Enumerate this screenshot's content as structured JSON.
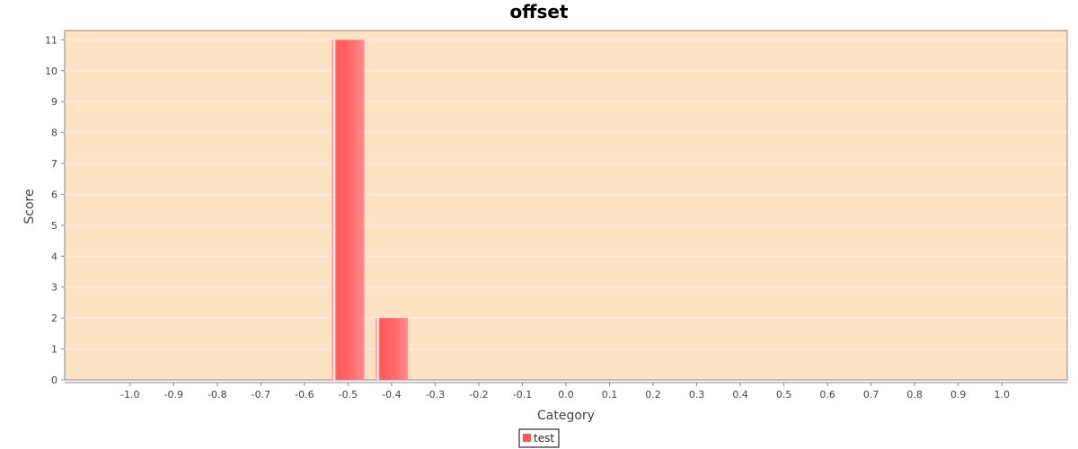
{
  "chart_data": {
    "type": "bar",
    "title": "offset",
    "xlabel": "Category",
    "ylabel": "Score",
    "x_ticks": [
      "-1.0",
      "-0.9",
      "-0.8",
      "-0.7",
      "-0.6",
      "-0.5",
      "-0.4",
      "-0.3",
      "-0.2",
      "-0.1",
      "0.0",
      "0.1",
      "0.2",
      "0.3",
      "0.4",
      "0.5",
      "0.6",
      "0.7",
      "0.8",
      "0.9",
      "1.0"
    ],
    "xlim": [
      -1.15,
      1.15
    ],
    "ylim": [
      0,
      11.3
    ],
    "y_ticks": [
      0,
      1,
      2,
      3,
      4,
      5,
      6,
      7,
      8,
      9,
      10,
      11
    ],
    "bar_width": 0.075,
    "grid": true,
    "legend_position": "bottom",
    "series": [
      {
        "name": "test",
        "color": "#ff5555",
        "points": [
          {
            "x": -0.5,
            "y": 11
          },
          {
            "x": -0.4,
            "y": 2
          }
        ]
      }
    ],
    "colors": {
      "plot_background": "#fde3c4",
      "gridline": "#fff3e6",
      "axis": "#888888"
    }
  }
}
